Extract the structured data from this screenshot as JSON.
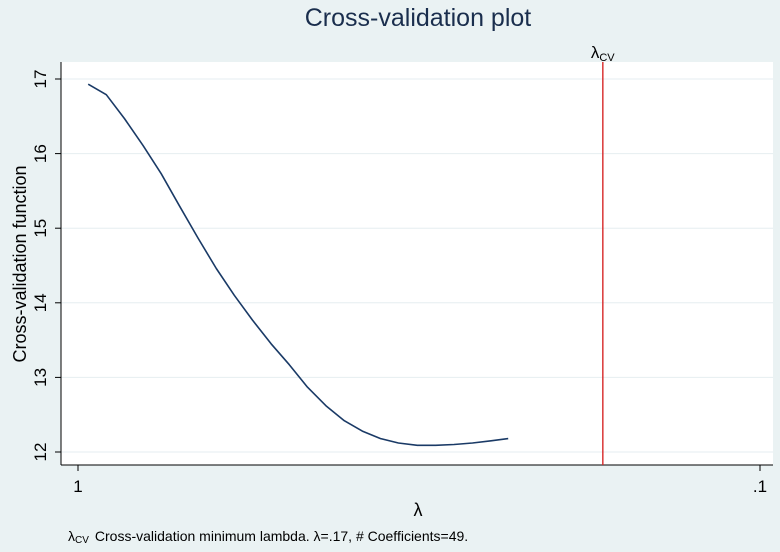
{
  "chart_data": {
    "type": "line",
    "title": "Cross-validation plot",
    "xlabel": "λ",
    "ylabel": "Cross-validation function",
    "x_scale": "log",
    "x_reversed": true,
    "xlim": [
      1.0,
      0.0955
    ],
    "ylim": [
      11.85,
      17.2
    ],
    "xticks": [
      1,
      0.1
    ],
    "xtick_labels": [
      "1",
      ".1"
    ],
    "yticks": [
      12,
      13,
      14,
      15,
      16,
      17
    ],
    "ytick_labels": [
      "12",
      "13",
      "14",
      "15",
      "16",
      "17"
    ],
    "grid": "horizontal",
    "series": [
      {
        "x": [
          0.966,
          0.909,
          0.855,
          0.803,
          0.755,
          0.71,
          0.667,
          0.627,
          0.59,
          0.555,
          0.521,
          0.49,
          0.461,
          0.433,
          0.407,
          0.383,
          0.36,
          0.339,
          0.318,
          0.299,
          0.281,
          0.264,
          0.248,
          0.234,
          0.22,
          0.206,
          0.194,
          0.182,
          0.171,
          0.161,
          0.152,
          0.143,
          0.134,
          0.126,
          0.118,
          0.111
        ],
        "y": [
          16.93,
          16.79,
          16.47,
          16.11,
          15.73,
          15.3,
          14.87,
          14.46,
          14.1,
          13.77,
          13.45,
          13.17,
          12.87,
          12.62,
          12.42,
          12.28,
          12.18,
          12.12,
          12.09,
          12.09,
          12.1,
          12.12,
          12.15,
          12.18,
          null,
          null,
          null,
          null,
          null,
          null,
          null,
          null,
          null,
          null,
          null,
          null
        ],
        "color": "#1a3a66"
      }
    ],
    "reference_line": {
      "x": 0.17,
      "color": "#d62728",
      "label": "λ",
      "label_sub": "CV"
    },
    "note": {
      "symbol": "λ",
      "symbol_sub": "CV",
      "text": "Cross-validation minimum lambda.  λ=.17, # Coefficients=49."
    }
  }
}
